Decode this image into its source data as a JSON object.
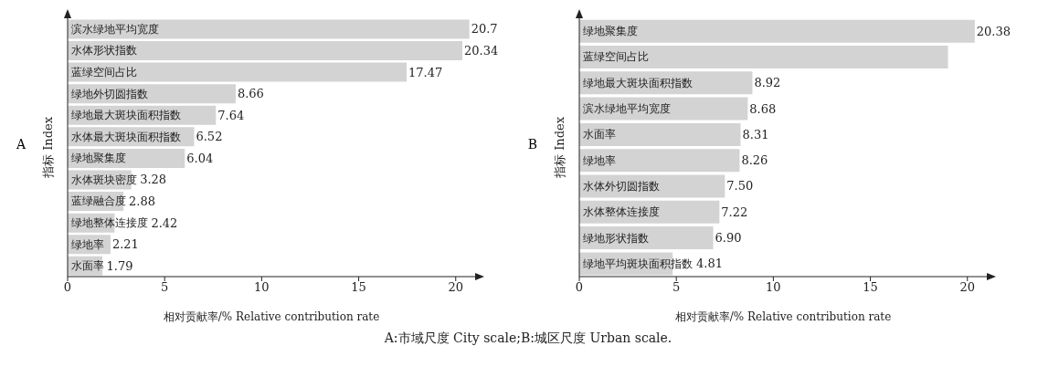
{
  "chart_data": [
    {
      "type": "bar",
      "orientation": "horizontal",
      "title": "A",
      "xlabel": "相对贡献率/% Relative contribution rate",
      "ylabel": "指标 Index",
      "categories": [
        "滨水绿地平均宽度",
        "水体形状指数",
        "蓝绿空间占比",
        "绿地外切圆指数",
        "绿地最大斑块面积指数",
        "水体最大斑块面积指数",
        "绿地聚集度",
        "水体斑块密度",
        "蓝绿融合度",
        "绿地整体连接度",
        "绿地率",
        "水面率"
      ],
      "values": [
        20.7,
        20.34,
        17.47,
        8.66,
        7.64,
        6.52,
        6.04,
        3.28,
        2.88,
        2.42,
        2.21,
        1.79
      ],
      "color": "#d3d3d3",
      "data_labels": true,
      "xlim": [
        0,
        21
      ],
      "xticks": [
        0,
        5,
        10,
        15,
        20
      ],
      "grid": false,
      "legend": false,
      "annotations": [
        "A:市域尺度 City scale;B:城区尺度 Urban scale."
      ]
    },
    {
      "type": "bar",
      "orientation": "horizontal",
      "title": "B",
      "xlabel": "相对贡献率/% Relative contribution rate",
      "ylabel": "指标 Index",
      "categories": [
        "绿地聚集度",
        "蓝绿空间占比",
        "绿地最大斑块面积指数",
        "滨水绿地平均宽度",
        "水面率",
        "绿地率",
        "水体外切圆指数",
        "水体整体连接度",
        "绿地形状指数",
        "绿地平均斑块面积指数"
      ],
      "values": [
        20.38,
        19.0,
        8.92,
        8.68,
        8.31,
        8.26,
        7.5,
        7.22,
        6.9,
        4.81
      ],
      "value_labels": [
        "20.38",
        null,
        "8.92",
        "8.68",
        "8.31",
        "8.26",
        "7.50",
        "7.22",
        "6.90",
        "4.81"
      ],
      "color": "#d3d3d3",
      "xlim": [
        0,
        21
      ],
      "xticks": [
        0,
        5,
        10,
        15,
        20
      ],
      "grid": false,
      "legend": false
    }
  ]
}
